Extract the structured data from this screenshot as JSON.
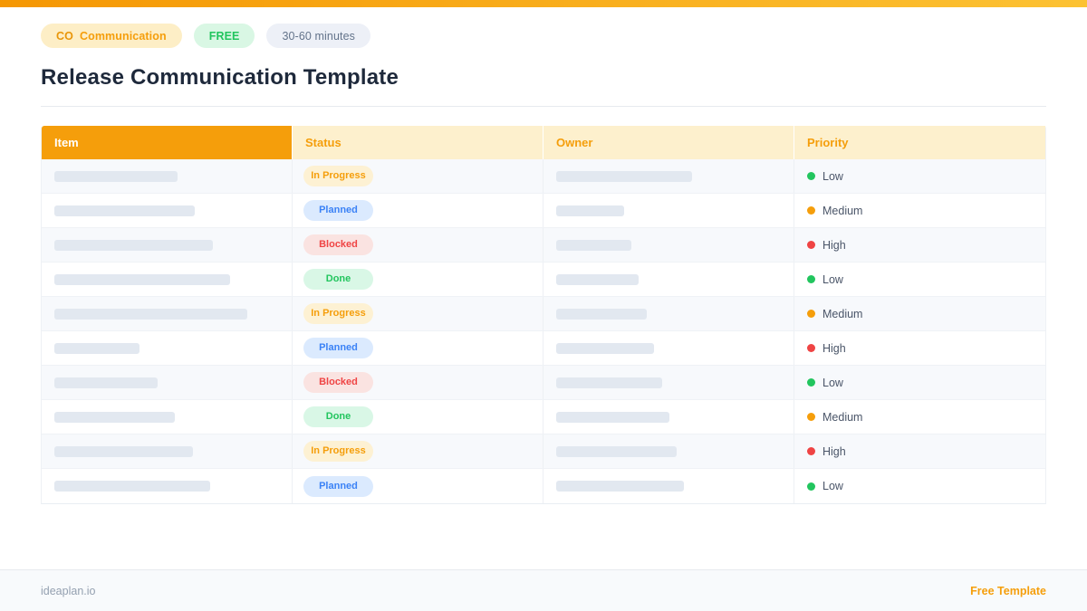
{
  "colors": {
    "accent": "#f59e0b",
    "topbar_gradient_start": "#f59703",
    "topbar_gradient_end": "#fcc233",
    "header_item_bg": "#f59e0b",
    "header_item_text": "#ffffff",
    "header_yellow_bg": "#fdf0cd",
    "row_alt_bg": "#f7f9fc",
    "placeholder_bar": "#e2e8f0",
    "title_text": "#1e293b",
    "body_text": "#4a5568",
    "footer_bg": "#f8fafc",
    "footer_left_text": "#94a0b0"
  },
  "badges": [
    {
      "prefix": "CO",
      "label": "Communication",
      "bg": "#fdeec6",
      "fg": "#f59e0b",
      "bold": true
    },
    {
      "prefix": "",
      "label": "FREE",
      "bg": "#d9f7e4",
      "fg": "#22c55e",
      "bold": true
    },
    {
      "prefix": "",
      "label": "30-60 minutes",
      "bg": "#edf0f7",
      "fg": "#64748b",
      "bold": false
    }
  ],
  "title": "Release Communication Template",
  "table": {
    "columns": [
      "Item",
      "Status",
      "Owner",
      "Priority"
    ],
    "rows": [
      {
        "item_bar_width": 136,
        "status": "In Progress",
        "owner_bar_width": 150,
        "priority": "Low"
      },
      {
        "item_bar_width": 155,
        "status": "Planned",
        "owner_bar_width": 75,
        "priority": "Medium"
      },
      {
        "item_bar_width": 175,
        "status": "Blocked",
        "owner_bar_width": 83,
        "priority": "High"
      },
      {
        "item_bar_width": 194,
        "status": "Done",
        "owner_bar_width": 91,
        "priority": "Low"
      },
      {
        "item_bar_width": 213,
        "status": "In Progress",
        "owner_bar_width": 100,
        "priority": "Medium"
      },
      {
        "item_bar_width": 94,
        "status": "Planned",
        "owner_bar_width": 108,
        "priority": "High"
      },
      {
        "item_bar_width": 114,
        "status": "Blocked",
        "owner_bar_width": 117,
        "priority": "Low"
      },
      {
        "item_bar_width": 133,
        "status": "Done",
        "owner_bar_width": 125,
        "priority": "Medium"
      },
      {
        "item_bar_width": 153,
        "status": "In Progress",
        "owner_bar_width": 133,
        "priority": "High"
      },
      {
        "item_bar_width": 172,
        "status": "Planned",
        "owner_bar_width": 141,
        "priority": "Low"
      }
    ]
  },
  "status_styles": {
    "In Progress": {
      "bg": "#fdf1d3",
      "fg": "#f59e0b"
    },
    "Planned": {
      "bg": "#dbeafe",
      "fg": "#3b82f6"
    },
    "Blocked": {
      "bg": "#fae3e1",
      "fg": "#ef4444"
    },
    "Done": {
      "bg": "#d9f7e6",
      "fg": "#22c55e"
    }
  },
  "priority_colors": {
    "Low": "#22c55e",
    "Medium": "#f59e0b",
    "High": "#ef4444"
  },
  "footer": {
    "left": "ideaplan.io",
    "right": "Free Template"
  }
}
